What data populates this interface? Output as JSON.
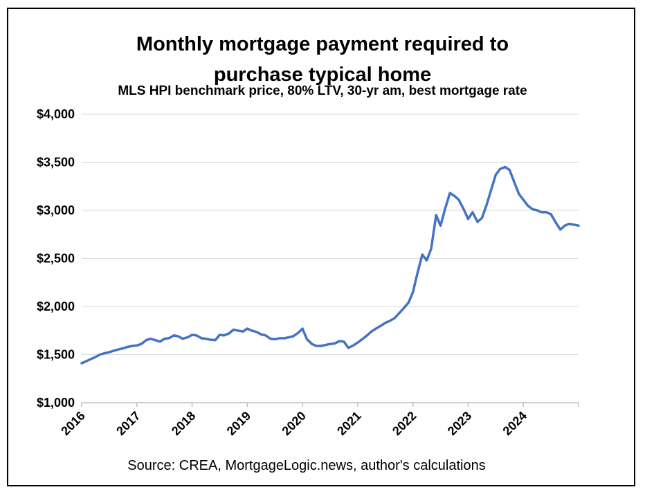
{
  "chart_data": {
    "type": "line",
    "title_lines": [
      "Monthly mortgage payment required to",
      "purchase typical home"
    ],
    "subtitle": "MLS HPI benchmark price, 80% LTV, 30-yr am, best mortgage rate",
    "source": "Source: CREA, MortgageLogic.news, author's calculations",
    "xlabel": "",
    "ylabel": "",
    "xlim": [
      2016,
      2025
    ],
    "ylim": [
      1000,
      4000
    ],
    "y_ticks": [
      1000,
      1500,
      2000,
      2500,
      3000,
      3500,
      4000
    ],
    "y_tick_labels": [
      "$1,000",
      "$1,500",
      "$2,000",
      "$2,500",
      "$3,000",
      "$3,500",
      "$4,000"
    ],
    "x_ticks": [
      2016,
      2017,
      2018,
      2019,
      2020,
      2021,
      2022,
      2023,
      2024
    ],
    "x_tick_labels": [
      "2016",
      "2017",
      "2018",
      "2019",
      "2020",
      "2021",
      "2022",
      "2023",
      "2024"
    ],
    "grid": true,
    "line_color": "#4472C4",
    "series": [
      {
        "x": [
          2016.0,
          2016.08,
          2016.17,
          2016.25,
          2016.33,
          2016.42,
          2016.5,
          2016.58,
          2016.67,
          2016.75,
          2016.83,
          2016.92,
          2017.0,
          2017.08,
          2017.17,
          2017.25,
          2017.33,
          2017.42,
          2017.5,
          2017.58,
          2017.67,
          2017.75,
          2017.83,
          2017.92,
          2018.0,
          2018.08,
          2018.17,
          2018.25,
          2018.33,
          2018.42,
          2018.5,
          2018.58,
          2018.67,
          2018.75,
          2018.83,
          2018.92,
          2019.0,
          2019.08,
          2019.17,
          2019.25,
          2019.33,
          2019.42,
          2019.5,
          2019.58,
          2019.67,
          2019.75,
          2019.83,
          2019.92,
          2020.0,
          2020.08,
          2020.17,
          2020.25,
          2020.33,
          2020.42,
          2020.5,
          2020.58,
          2020.67,
          2020.75,
          2020.83,
          2020.92,
          2021.0,
          2021.08,
          2021.17,
          2021.25,
          2021.33,
          2021.42,
          2021.5,
          2021.58,
          2021.67,
          2021.75,
          2021.83,
          2021.92,
          2022.0,
          2022.08,
          2022.17,
          2022.25,
          2022.33,
          2022.42,
          2022.5,
          2022.58,
          2022.67,
          2022.75,
          2022.83,
          2022.92,
          2023.0,
          2023.08,
          2023.17,
          2023.25,
          2023.33,
          2023.42,
          2023.5,
          2023.58,
          2023.67,
          2023.75,
          2023.83,
          2023.92,
          2024.0,
          2024.08,
          2024.17,
          2024.25,
          2024.33,
          2024.42,
          2024.5,
          2024.58,
          2024.67,
          2024.75,
          2024.83,
          2024.92,
          2025.0
        ],
        "y": [
          1410,
          1430,
          1455,
          1475,
          1500,
          1515,
          1525,
          1540,
          1555,
          1565,
          1580,
          1590,
          1595,
          1610,
          1650,
          1665,
          1650,
          1635,
          1665,
          1670,
          1700,
          1690,
          1665,
          1680,
          1705,
          1700,
          1670,
          1665,
          1655,
          1650,
          1705,
          1700,
          1720,
          1760,
          1750,
          1740,
          1770,
          1750,
          1735,
          1710,
          1700,
          1665,
          1660,
          1670,
          1670,
          1680,
          1690,
          1725,
          1770,
          1660,
          1610,
          1590,
          1590,
          1600,
          1610,
          1615,
          1640,
          1635,
          1570,
          1595,
          1625,
          1660,
          1700,
          1740,
          1770,
          1800,
          1830,
          1850,
          1880,
          1930,
          1980,
          2040,
          2150,
          2340,
          2540,
          2480,
          2600,
          2950,
          2840,
          3010,
          3180,
          3150,
          3110,
          3010,
          2910,
          2980,
          2880,
          2920,
          3050,
          3220,
          3370,
          3430,
          3450,
          3420,
          3300,
          3170,
          3110,
          3050,
          3010,
          3000,
          2980,
          2980,
          2960,
          2880,
          2800,
          2840,
          2860,
          2850,
          2840
        ]
      }
    ]
  }
}
